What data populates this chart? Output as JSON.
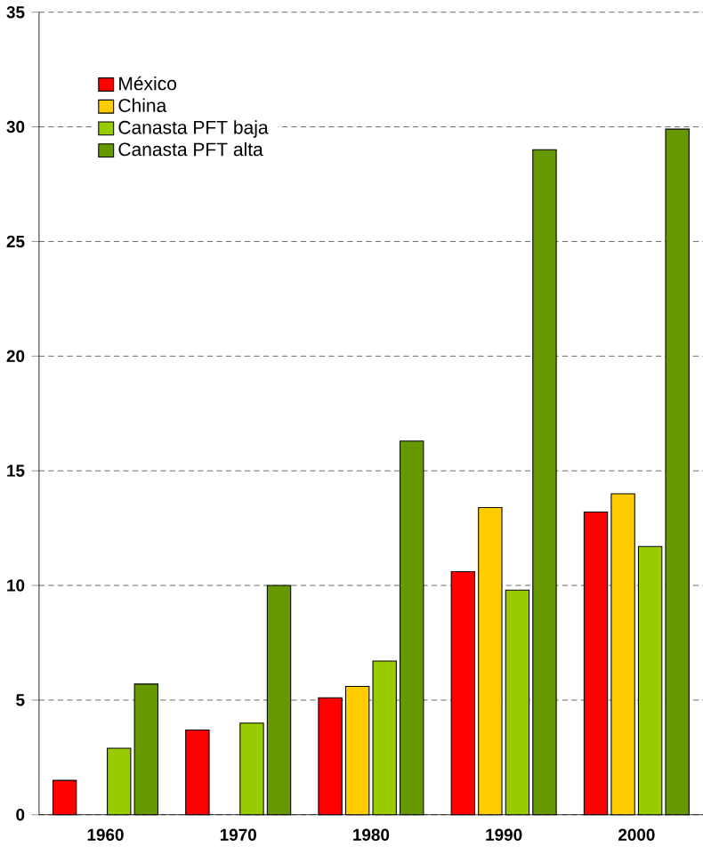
{
  "chart_data": {
    "type": "bar",
    "categories": [
      "1960",
      "1970",
      "1980",
      "1990",
      "2000"
    ],
    "series": [
      {
        "name": "México",
        "color": "#ff0000",
        "values": [
          1.5,
          3.7,
          5.1,
          10.6,
          13.2
        ]
      },
      {
        "name": "China",
        "color": "#ffcc00",
        "values": [
          null,
          null,
          5.6,
          13.4,
          14.0
        ]
      },
      {
        "name": "Canasta PFT baja",
        "color": "#99cc00",
        "values": [
          2.9,
          4.0,
          6.7,
          9.8,
          11.7
        ]
      },
      {
        "name": "Canasta PFT alta",
        "color": "#669900",
        "values": [
          5.7,
          10.0,
          16.3,
          29.0,
          29.9
        ]
      }
    ],
    "ylim": [
      0,
      35
    ],
    "yticks": [
      0,
      5,
      10,
      15,
      20,
      25,
      30,
      35
    ],
    "grid": "y",
    "legend": "top left"
  }
}
